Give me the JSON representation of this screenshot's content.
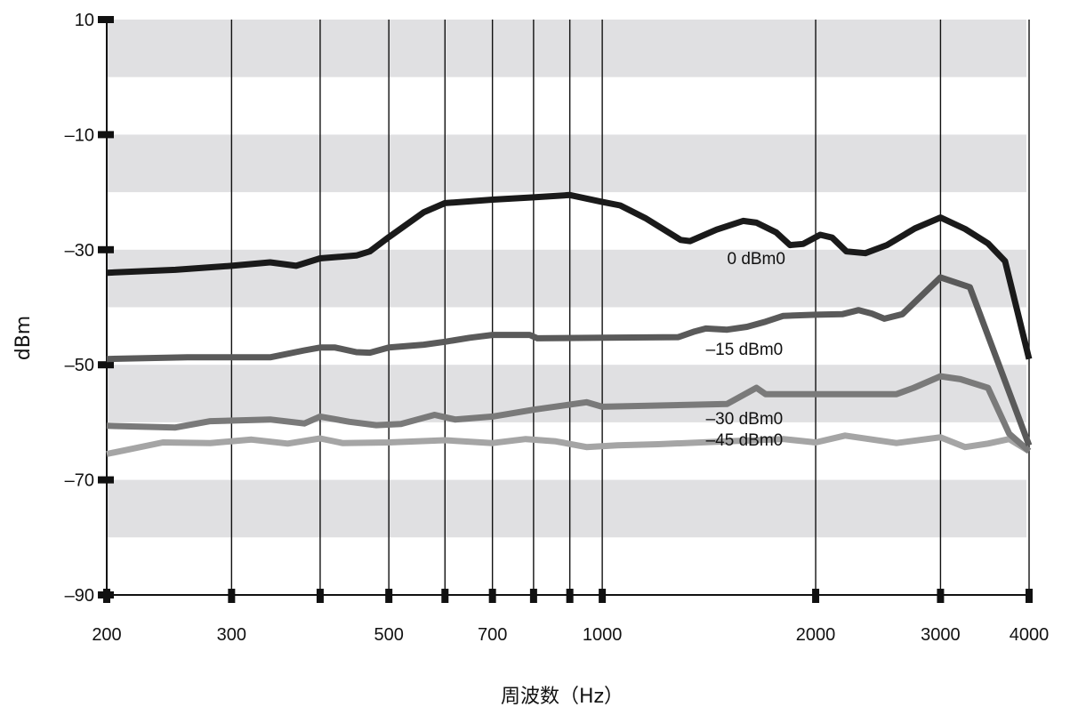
{
  "chart_data": {
    "type": "line",
    "title": "",
    "xlabel": "周波数（Hz）",
    "ylabel": "dBm",
    "xscale": "log",
    "xlim": [
      200,
      4000
    ],
    "ylim": [
      -90,
      10
    ],
    "grid": true,
    "y_band_color": "#e0e0e2",
    "yticks": [
      {
        "value": 10,
        "label": "10"
      },
      {
        "value": -10,
        "label": "–10"
      },
      {
        "value": -30,
        "label": "–30"
      },
      {
        "value": -50,
        "label": "–50"
      },
      {
        "value": -70,
        "label": "–70"
      },
      {
        "value": -90,
        "label": "–90"
      }
    ],
    "xticks": [
      {
        "value": 200,
        "label": "200"
      },
      {
        "value": 300,
        "label": "300"
      },
      {
        "value": 400,
        "label": ""
      },
      {
        "value": 500,
        "label": "500"
      },
      {
        "value": 600,
        "label": ""
      },
      {
        "value": 700,
        "label": "700"
      },
      {
        "value": 800,
        "label": ""
      },
      {
        "value": 900,
        "label": ""
      },
      {
        "value": 1000,
        "label": "1000"
      },
      {
        "value": 2000,
        "label": "2000"
      },
      {
        "value": 3000,
        "label": "3000"
      },
      {
        "value": 4000,
        "label": "4000"
      }
    ],
    "series": [
      {
        "name": "0 dBm0",
        "color": "#1a1a1a",
        "label_at": [
          1500,
          -32.5
        ],
        "points": [
          [
            200,
            -34.0
          ],
          [
            250,
            -33.5
          ],
          [
            300,
            -32.8
          ],
          [
            340,
            -32.2
          ],
          [
            370,
            -32.8
          ],
          [
            400,
            -31.5
          ],
          [
            450,
            -31.0
          ],
          [
            470,
            -30.3
          ],
          [
            500,
            -27.8
          ],
          [
            560,
            -23.5
          ],
          [
            600,
            -21.9
          ],
          [
            700,
            -21.3
          ],
          [
            800,
            -20.9
          ],
          [
            900,
            -20.5
          ],
          [
            1000,
            -21.7
          ],
          [
            1060,
            -22.3
          ],
          [
            1150,
            -24.5
          ],
          [
            1290,
            -28.3
          ],
          [
            1330,
            -28.5
          ],
          [
            1450,
            -26.5
          ],
          [
            1580,
            -25.0
          ],
          [
            1650,
            -25.3
          ],
          [
            1760,
            -27.0
          ],
          [
            1840,
            -29.2
          ],
          [
            1920,
            -29.0
          ],
          [
            2030,
            -27.4
          ],
          [
            2110,
            -27.9
          ],
          [
            2210,
            -30.3
          ],
          [
            2350,
            -30.6
          ],
          [
            2520,
            -29.2
          ],
          [
            2760,
            -26.3
          ],
          [
            3000,
            -24.4
          ],
          [
            3250,
            -26.4
          ],
          [
            3500,
            -28.9
          ],
          [
            3700,
            -32.0
          ],
          [
            4000,
            -49.0
          ]
        ]
      },
      {
        "name": "–15 dBm0",
        "color": "#5a5a5a",
        "label_at": [
          1400,
          -48.3
        ],
        "points": [
          [
            200,
            -49.0
          ],
          [
            260,
            -48.7
          ],
          [
            340,
            -48.7
          ],
          [
            380,
            -47.5
          ],
          [
            400,
            -47.0
          ],
          [
            420,
            -47.0
          ],
          [
            450,
            -47.8
          ],
          [
            470,
            -47.9
          ],
          [
            500,
            -47.0
          ],
          [
            560,
            -46.5
          ],
          [
            600,
            -46.0
          ],
          [
            650,
            -45.3
          ],
          [
            700,
            -44.8
          ],
          [
            790,
            -44.8
          ],
          [
            810,
            -45.4
          ],
          [
            1000,
            -45.3
          ],
          [
            1280,
            -45.2
          ],
          [
            1350,
            -44.2
          ],
          [
            1400,
            -43.7
          ],
          [
            1500,
            -43.9
          ],
          [
            1600,
            -43.4
          ],
          [
            1700,
            -42.5
          ],
          [
            1800,
            -41.5
          ],
          [
            2000,
            -41.3
          ],
          [
            2180,
            -41.2
          ],
          [
            2300,
            -40.5
          ],
          [
            2400,
            -41.1
          ],
          [
            2500,
            -42.0
          ],
          [
            2650,
            -41.2
          ],
          [
            3000,
            -34.8
          ],
          [
            3300,
            -36.5
          ],
          [
            4000,
            -64.0
          ]
        ]
      },
      {
        "name": "–30 dBm0",
        "color": "#7a7a7a",
        "label_at": [
          1400,
          -60.3
        ],
        "points": [
          [
            200,
            -60.6
          ],
          [
            250,
            -60.9
          ],
          [
            280,
            -59.8
          ],
          [
            340,
            -59.5
          ],
          [
            380,
            -60.2
          ],
          [
            400,
            -59.0
          ],
          [
            440,
            -59.9
          ],
          [
            480,
            -60.5
          ],
          [
            520,
            -60.3
          ],
          [
            580,
            -58.7
          ],
          [
            620,
            -59.5
          ],
          [
            700,
            -59.0
          ],
          [
            800,
            -57.8
          ],
          [
            950,
            -56.5
          ],
          [
            1000,
            -57.3
          ],
          [
            1500,
            -56.8
          ],
          [
            1650,
            -54.0
          ],
          [
            1700,
            -55.1
          ],
          [
            2600,
            -55.1
          ],
          [
            2750,
            -54.0
          ],
          [
            3000,
            -52.0
          ],
          [
            3200,
            -52.5
          ],
          [
            3500,
            -54.0
          ],
          [
            3750,
            -62.0
          ],
          [
            4000,
            -65.0
          ]
        ]
      },
      {
        "name": "–45 dBm0",
        "color": "#a5a5a5",
        "label_at": [
          1400,
          -64.0
        ],
        "points": [
          [
            200,
            -65.5
          ],
          [
            240,
            -63.5
          ],
          [
            280,
            -63.6
          ],
          [
            320,
            -63.0
          ],
          [
            360,
            -63.7
          ],
          [
            400,
            -62.8
          ],
          [
            430,
            -63.6
          ],
          [
            500,
            -63.5
          ],
          [
            600,
            -63.1
          ],
          [
            700,
            -63.6
          ],
          [
            780,
            -62.9
          ],
          [
            860,
            -63.3
          ],
          [
            950,
            -64.3
          ],
          [
            1050,
            -64.0
          ],
          [
            1200,
            -63.8
          ],
          [
            1500,
            -63.3
          ],
          [
            1800,
            -62.9
          ],
          [
            2000,
            -63.5
          ],
          [
            2200,
            -62.3
          ],
          [
            2600,
            -63.6
          ],
          [
            3000,
            -62.6
          ],
          [
            3250,
            -64.3
          ],
          [
            3500,
            -63.7
          ],
          [
            3750,
            -62.9
          ],
          [
            4000,
            -65.0
          ]
        ]
      }
    ]
  }
}
